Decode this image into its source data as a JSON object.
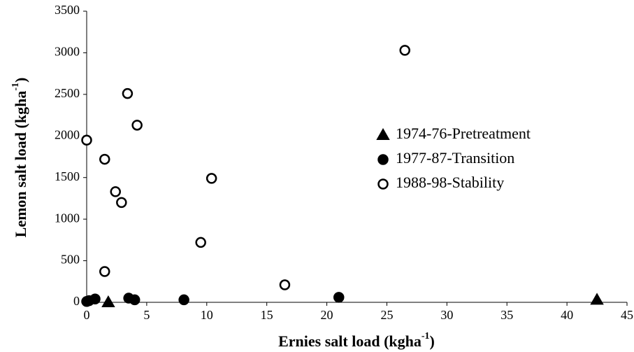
{
  "chart_data": {
    "type": "scatter",
    "x_label": "Ernies salt load (kgha",
    "x_label_sup": "-1",
    "x_label_end": ")",
    "y_label": "Lemon salt load (kgha",
    "y_label_sup": "-1",
    "y_label_end": ")",
    "xlim": [
      0,
      45
    ],
    "xticks": [
      0,
      5,
      10,
      15,
      20,
      25,
      30,
      35,
      40,
      45
    ],
    "ylim": [
      0,
      3500
    ],
    "yticks": [
      0,
      500,
      1000,
      1500,
      2000,
      2500,
      3000,
      3500
    ],
    "grid": false,
    "series": [
      {
        "name": "1974-76-Pretreatment",
        "color": "#000000",
        "marker": "triangle",
        "filled": true,
        "x": [
          1.8,
          42.5
        ],
        "values": [
          0,
          30
        ]
      },
      {
        "name": "1977-87-Transition",
        "color": "#000000",
        "marker": "circle",
        "filled": true,
        "x": [
          0,
          0.2,
          0.7,
          3.5,
          4.0,
          8.1,
          21.0
        ],
        "values": [
          10,
          20,
          40,
          50,
          30,
          30,
          60
        ]
      },
      {
        "name": "1988-98-Stability",
        "color": "#000000",
        "marker": "circle",
        "filled": false,
        "x": [
          0,
          1.5,
          3.4,
          4.2,
          2.4,
          2.9,
          1.5,
          9.5,
          10.4,
          16.5,
          26.5
        ],
        "values": [
          1950,
          1720,
          2510,
          2130,
          1330,
          1200,
          370,
          720,
          1490,
          210,
          3030
        ]
      }
    ]
  }
}
